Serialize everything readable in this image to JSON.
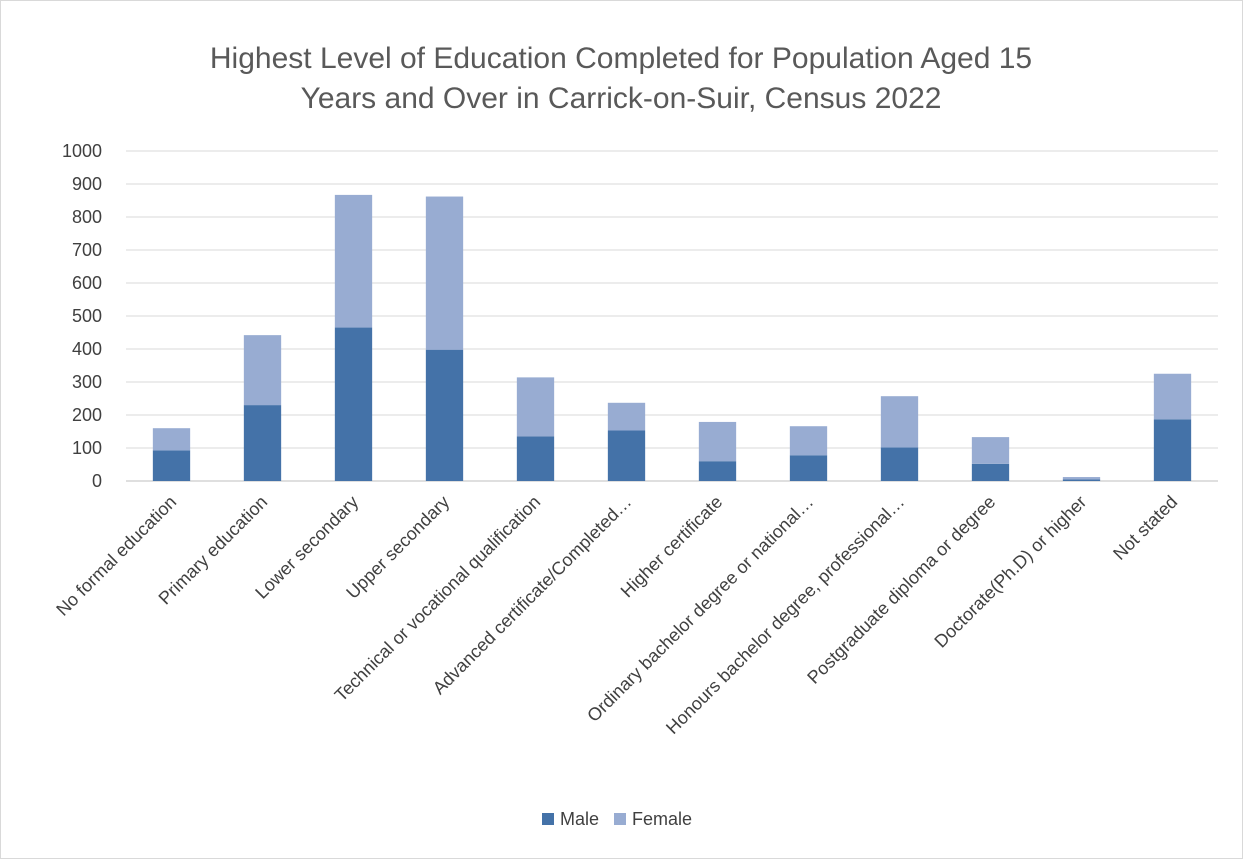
{
  "chart_data": {
    "type": "bar",
    "stacked": true,
    "title_lines": [
      "Highest Level of Education Completed for Population Aged 15",
      "Years and Over in Carrick-on-Suir, Census 2022"
    ],
    "categories": [
      "No formal education",
      "Primary education",
      "Lower secondary",
      "Upper secondary",
      "Technical or vocational qualification",
      "Advanced certificate/Completed…",
      "Higher certificate",
      "Ordinary bachelor degree or national…",
      "Honours bachelor degree, professional…",
      "Postgraduate diploma or degree",
      "Doctorate(Ph.D) or higher",
      "Not stated"
    ],
    "series": [
      {
        "name": "Male",
        "color": "#4472a8",
        "values": [
          93,
          230,
          465,
          398,
          135,
          153,
          60,
          78,
          102,
          52,
          5,
          187
        ]
      },
      {
        "name": "Female",
        "color": "#98acd2",
        "values": [
          67,
          212,
          402,
          464,
          179,
          84,
          119,
          88,
          155,
          81,
          7,
          138
        ]
      }
    ],
    "ylim": [
      0,
      1000
    ],
    "yticks": [
      "0",
      "100",
      "200",
      "300",
      "400",
      "500",
      "600",
      "700",
      "800",
      "900",
      "1000"
    ],
    "grid": true,
    "legend_position": "bottom"
  }
}
